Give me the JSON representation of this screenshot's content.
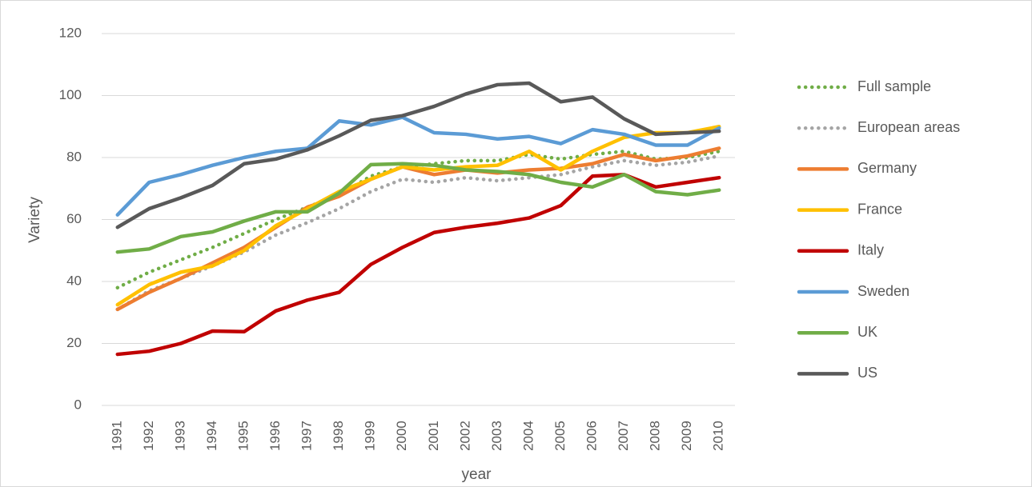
{
  "chart_data": {
    "type": "line",
    "x_label": "year",
    "y_label": "Variety",
    "categories": [
      "1991",
      "1992",
      "1993",
      "1994",
      "1995",
      "1996",
      "1997",
      "1998",
      "1999",
      "2000",
      "2001",
      "2002",
      "2003",
      "2004",
      "2005",
      "2006",
      "2007",
      "2008",
      "2009",
      "2010"
    ],
    "ylim": [
      0,
      120
    ],
    "yticks": [
      0,
      20,
      40,
      60,
      80,
      100,
      120
    ],
    "grid": true,
    "legend": "right",
    "series": [
      {
        "name": "Full sample",
        "color": "#70ad47",
        "line_style": "dotted",
        "values": [
          38,
          43,
          47,
          51,
          55.5,
          60,
          64,
          68,
          74,
          77,
          78,
          79,
          79,
          81,
          79.5,
          81,
          82,
          79.5,
          80,
          82
        ]
      },
      {
        "name": "European areas",
        "color": "#a5a5a5",
        "line_style": "dotted",
        "values": [
          31,
          37,
          41,
          45,
          49.5,
          55,
          59,
          63.5,
          69,
          73,
          72,
          73.5,
          72.5,
          73.5,
          74.5,
          77,
          79,
          77.5,
          78.5,
          80.5
        ]
      },
      {
        "name": "Germany",
        "color": "#ed7d31",
        "line_style": "solid",
        "values": [
          31,
          36.5,
          41,
          46,
          51,
          57.5,
          64,
          67.5,
          73,
          77,
          74.5,
          76,
          75,
          76,
          76.5,
          78,
          81,
          79,
          80.5,
          83
        ]
      },
      {
        "name": "France",
        "color": "#ffc000",
        "line_style": "solid",
        "values": [
          32.5,
          39,
          43,
          45,
          50,
          58,
          63.5,
          69,
          73,
          77,
          76,
          77,
          77.5,
          82,
          76,
          82,
          86.5,
          88,
          88,
          90
        ]
      },
      {
        "name": "Italy",
        "color": "#c00000",
        "line_style": "solid",
        "values": [
          16.5,
          17.5,
          20,
          24,
          23.8,
          30.5,
          34,
          36.5,
          45.5,
          51,
          55.8,
          57.5,
          58.8,
          60.5,
          64.5,
          74,
          74.5,
          70.5,
          72,
          73.5
        ]
      },
      {
        "name": "Sweden",
        "color": "#5b9bd5",
        "line_style": "solid",
        "values": [
          61.5,
          72,
          74.5,
          77.5,
          80,
          82,
          83,
          91.8,
          90.5,
          93,
          88,
          87.5,
          86,
          86.8,
          84.5,
          89,
          87.5,
          84,
          84,
          89.5
        ]
      },
      {
        "name": "UK",
        "color": "#70ad47",
        "line_style": "solid",
        "values": [
          49.5,
          50.5,
          54.5,
          56,
          59.5,
          62.5,
          62.5,
          68.5,
          77.7,
          78,
          77.5,
          76,
          75.5,
          74.5,
          72,
          70.5,
          74.5,
          69,
          68,
          69.5
        ]
      },
      {
        "name": "US",
        "color": "#595959",
        "line_style": "solid",
        "values": [
          57.5,
          63.5,
          67,
          71,
          78,
          79.5,
          82.5,
          87,
          92,
          93.5,
          96.5,
          100.5,
          103.5,
          104,
          98,
          99.5,
          92.5,
          87.5,
          88,
          88.5
        ]
      }
    ]
  }
}
